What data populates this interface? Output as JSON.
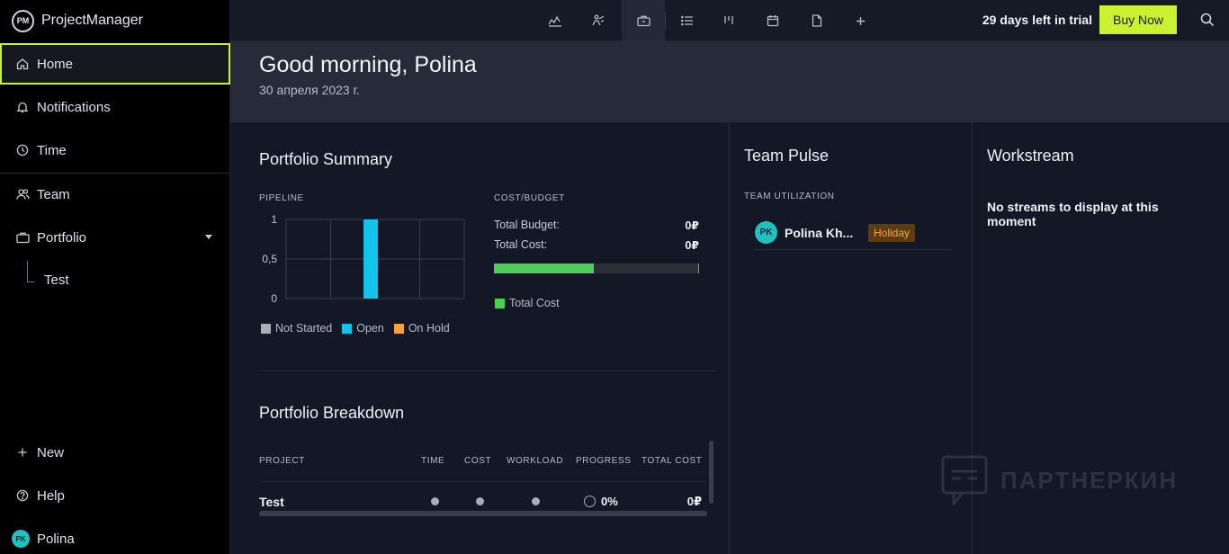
{
  "brand": {
    "logo_text": "PM",
    "name": "ProjectManager"
  },
  "sidebar": {
    "items": [
      {
        "label": "Home",
        "icon": "home-icon"
      },
      {
        "label": "Notifications",
        "icon": "bell-icon"
      },
      {
        "label": "Time",
        "icon": "clock-icon"
      },
      {
        "label": "Team",
        "icon": "team-icon"
      },
      {
        "label": "Portfolio",
        "icon": "briefcase-icon"
      },
      {
        "label": "Test"
      }
    ],
    "bottom": [
      {
        "label": "New",
        "icon": "plus-icon"
      },
      {
        "label": "Help",
        "icon": "help-icon"
      },
      {
        "label": "Polina",
        "avatar": "PK"
      }
    ]
  },
  "topbar": {
    "tools": [
      "dashboard-icon",
      "workload-icon",
      "portfolio-icon",
      "list-icon",
      "board-icon",
      "calendar-icon",
      "document-icon",
      "add-icon"
    ],
    "trial_text": "29 days left in trial",
    "buy_label": "Buy Now"
  },
  "greeting": {
    "title": "Good morning, Polina",
    "date": "30 апреля 2023 г."
  },
  "portfolio_summary": {
    "title": "Portfolio Summary",
    "pipeline_label": "PIPELINE",
    "cost_budget_label": "COST/BUDGET",
    "total_budget_label": "Total Budget:",
    "total_budget_value": "0₽",
    "total_cost_label": "Total Cost:",
    "total_cost_value": "0₽",
    "cost_bar_fraction": 0.49,
    "cost_legend": "Total Cost"
  },
  "chart_data": {
    "type": "bar",
    "categories": [
      "",
      "",
      "",
      ""
    ],
    "series": [
      {
        "name": "Not Started",
        "color": "#a9adb8",
        "values": [
          0,
          0,
          0,
          0
        ]
      },
      {
        "name": "Open",
        "color": "#12c3ea",
        "values": [
          0,
          1,
          0,
          0
        ]
      },
      {
        "name": "On Hold",
        "color": "#f4a23c",
        "values": [
          0,
          0,
          0,
          0
        ]
      }
    ],
    "yticks": [
      "0",
      "0,5",
      "1"
    ],
    "ylim": [
      0,
      1
    ],
    "grid": true,
    "legend_position": "bottom"
  },
  "portfolio_breakdown": {
    "title": "Portfolio Breakdown",
    "columns": [
      "PROJECT",
      "TIME",
      "COST",
      "WORKLOAD",
      "PROGRESS",
      "TOTAL COST"
    ],
    "rows": [
      {
        "project": "Test",
        "progress": "0%",
        "total_cost": "0₽"
      }
    ]
  },
  "team_pulse": {
    "title": "Team Pulse",
    "utilization_label": "TEAM UTILIZATION",
    "members": [
      {
        "initials": "PK",
        "name": "Polina Kh...",
        "status": "Holiday"
      }
    ]
  },
  "workstream": {
    "title": "Workstream",
    "empty": "No streams to display at this moment"
  },
  "watermark": {
    "text": "ПАРТНЕРКИН"
  }
}
